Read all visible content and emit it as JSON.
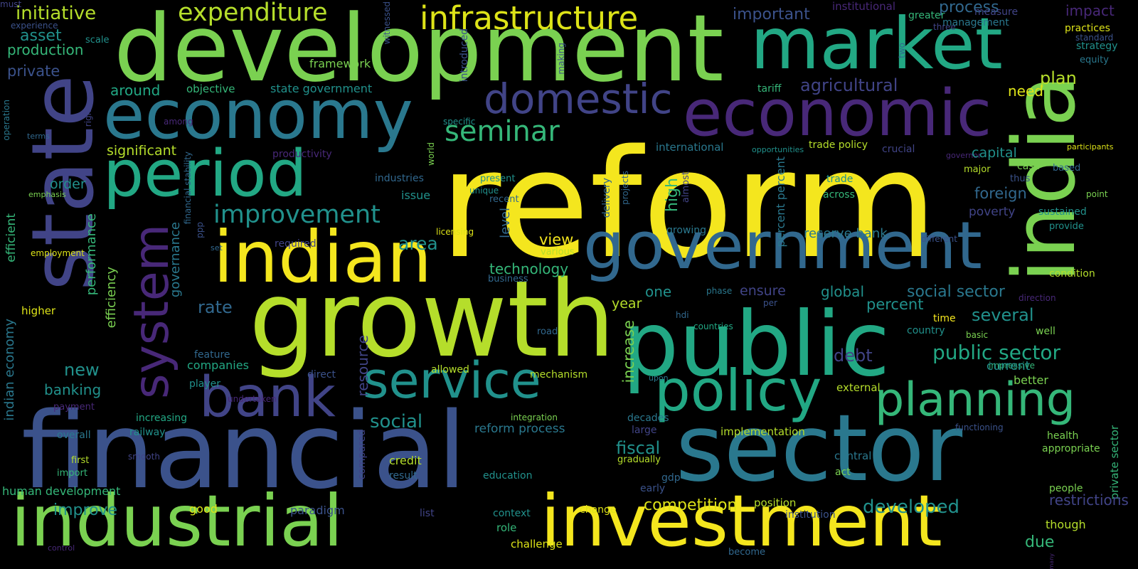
{
  "words": [
    {
      "text": "reform",
      "color": "#f4e61e",
      "rot": false
    },
    {
      "text": "development",
      "color": "#7ad151",
      "rot": false
    },
    {
      "text": "financial",
      "color": "#3b528b",
      "rot": false
    },
    {
      "text": "growth",
      "color": "#b5de2b",
      "rot": false
    },
    {
      "text": "public",
      "color": "#22a884",
      "rot": false
    },
    {
      "text": "sector",
      "color": "#2a788e",
      "rot": false
    },
    {
      "text": "state",
      "color": "#414487",
      "rot": true
    },
    {
      "text": "india",
      "color": "#7ad151",
      "rot": true
    },
    {
      "text": "industrial",
      "color": "#7ad151",
      "rot": false
    },
    {
      "text": "investment",
      "color": "#f4e61e",
      "rot": false
    },
    {
      "text": "market",
      "color": "#22a884",
      "rot": false
    },
    {
      "text": "economy",
      "color": "#2a788e",
      "rot": false
    },
    {
      "text": "economic",
      "color": "#482878",
      "rot": false
    },
    {
      "text": "government",
      "color": "#31688e",
      "rot": false
    },
    {
      "text": "indian",
      "color": "#f4e61e",
      "rot": false
    },
    {
      "text": "period",
      "color": "#22a884",
      "rot": false
    },
    {
      "text": "policy",
      "color": "#22a884",
      "rot": false
    },
    {
      "text": "planning",
      "color": "#35b779",
      "rot": false
    },
    {
      "text": "bank",
      "color": "#414487",
      "rot": false
    },
    {
      "text": "service",
      "color": "#21918c",
      "rot": false
    },
    {
      "text": "system",
      "color": "#482878",
      "rot": true
    },
    {
      "text": "infrastructure",
      "color": "#dde318",
      "rot": false
    },
    {
      "text": "domestic",
      "color": "#414487",
      "rot": false
    },
    {
      "text": "seminar",
      "color": "#35b779",
      "rot": false
    },
    {
      "text": "improvement",
      "color": "#21918c",
      "rot": false
    },
    {
      "text": "expenditure",
      "color": "#b5de2b",
      "rot": false
    },
    {
      "text": "initiative",
      "color": "#b5de2b",
      "rot": false
    },
    {
      "text": "asset",
      "color": "#21918c",
      "rot": false
    },
    {
      "text": "production",
      "color": "#35b779",
      "rot": false
    },
    {
      "text": "private",
      "color": "#3b528b",
      "rot": false
    },
    {
      "text": "experience",
      "color": "#3b528b",
      "rot": false
    },
    {
      "text": "scale",
      "color": "#21918c",
      "rot": false
    },
    {
      "text": "witnessed",
      "color": "#3b528b",
      "rot": true
    },
    {
      "text": "framework",
      "color": "#7ad151",
      "rot": false
    },
    {
      "text": "around",
      "color": "#22a884",
      "rot": false
    },
    {
      "text": "objective",
      "color": "#35b779",
      "rot": false
    },
    {
      "text": "state government",
      "color": "#21918c",
      "rot": false
    },
    {
      "text": "introduced",
      "color": "#3b528b",
      "rot": true
    },
    {
      "text": "making",
      "color": "#3b528b",
      "rot": true
    },
    {
      "text": "important",
      "color": "#3b528b",
      "rot": false
    },
    {
      "text": "institutional",
      "color": "#482878",
      "rot": false
    },
    {
      "text": "greater",
      "color": "#35b779",
      "rot": false
    },
    {
      "text": "three",
      "color": "#414487",
      "rot": false
    },
    {
      "text": "two",
      "color": "#31688e",
      "rot": true
    },
    {
      "text": "process",
      "color": "#31688e",
      "rot": false
    },
    {
      "text": "measure",
      "color": "#414487",
      "rot": false
    },
    {
      "text": "management",
      "color": "#2a788e",
      "rot": false
    },
    {
      "text": "impact",
      "color": "#482878",
      "rot": false
    },
    {
      "text": "practices",
      "color": "#dde318",
      "rot": false
    },
    {
      "text": "standard",
      "color": "#3b528b",
      "rot": false
    },
    {
      "text": "strategy",
      "color": "#21918c",
      "rot": false
    },
    {
      "text": "equity",
      "color": "#2a788e",
      "rot": false
    },
    {
      "text": "plan",
      "color": "#b5de2b",
      "rot": false
    },
    {
      "text": "agricultural",
      "color": "#414487",
      "rot": false
    },
    {
      "text": "need",
      "color": "#dde318",
      "rot": false
    },
    {
      "text": "tariff",
      "color": "#35b779",
      "rot": false
    },
    {
      "text": "significant",
      "color": "#b5de2b",
      "rot": false
    },
    {
      "text": "productivity",
      "color": "#482878",
      "rot": false
    },
    {
      "text": "world",
      "color": "#7ad151",
      "rot": true
    },
    {
      "text": "specific",
      "color": "#21918c",
      "rot": false
    },
    {
      "text": "among",
      "color": "#482878",
      "rot": false
    },
    {
      "text": "right",
      "color": "#414487",
      "rot": true
    },
    {
      "text": "operation",
      "color": "#2a788e",
      "rot": true
    },
    {
      "text": "terms",
      "color": "#31688e",
      "rot": false
    },
    {
      "text": "emphasis",
      "color": "#7ad151",
      "rot": false
    },
    {
      "text": "order",
      "color": "#21918c",
      "rot": false
    },
    {
      "text": "efficient",
      "color": "#35b779",
      "rot": true
    },
    {
      "text": "employment",
      "color": "#dde318",
      "rot": false
    },
    {
      "text": "higher",
      "color": "#dde318",
      "rot": false
    },
    {
      "text": "financial stability",
      "color": "#31688e",
      "rot": true
    },
    {
      "text": "ppp",
      "color": "#3b528b",
      "rot": true
    },
    {
      "text": "set",
      "color": "#31688e",
      "rot": false
    },
    {
      "text": "required",
      "color": "#414487",
      "rot": false
    },
    {
      "text": "governance",
      "color": "#2a788e",
      "rot": true
    },
    {
      "text": "performance",
      "color": "#35b779",
      "rot": true
    },
    {
      "text": "efficiency",
      "color": "#7ad151",
      "rot": true
    },
    {
      "text": "industries",
      "color": "#31688e",
      "rot": false
    },
    {
      "text": "issue",
      "color": "#21918c",
      "rot": false
    },
    {
      "text": "area",
      "color": "#21918c",
      "rot": false
    },
    {
      "text": "present",
      "color": "#21918c",
      "rot": false
    },
    {
      "text": "unique",
      "color": "#21918c",
      "rot": false
    },
    {
      "text": "recent",
      "color": "#31688e",
      "rot": false
    },
    {
      "text": "licensing",
      "color": "#dde318",
      "rot": false
    },
    {
      "text": "level",
      "color": "#31688e",
      "rot": true
    },
    {
      "text": "view",
      "color": "#f4e61e",
      "rot": false
    },
    {
      "text": "various",
      "color": "#b5de2b",
      "rot": false
    },
    {
      "text": "technology",
      "color": "#35b779",
      "rot": false
    },
    {
      "text": "business",
      "color": "#31688e",
      "rot": false
    },
    {
      "text": "delivery",
      "color": "#31688e",
      "rot": true
    },
    {
      "text": "projects",
      "color": "#31688e",
      "rot": true
    },
    {
      "text": "almost",
      "color": "#414487",
      "rot": true
    },
    {
      "text": "high",
      "color": "#35b779",
      "rot": true
    },
    {
      "text": "international",
      "color": "#2a788e",
      "rot": false
    },
    {
      "text": "opportunities",
      "color": "#21918c",
      "rot": false
    },
    {
      "text": "trade policy",
      "color": "#b5de2b",
      "rot": false
    },
    {
      "text": "crucial",
      "color": "#414487",
      "rot": false
    },
    {
      "text": "governor",
      "color": "#482878",
      "rot": false
    },
    {
      "text": "participants",
      "color": "#dde318",
      "rot": false
    },
    {
      "text": "capital",
      "color": "#21918c",
      "rot": false
    },
    {
      "text": "case",
      "color": "#7ad151",
      "rot": false
    },
    {
      "text": "based",
      "color": "#31688e",
      "rot": false
    },
    {
      "text": "major",
      "color": "#b5de2b",
      "rot": false
    },
    {
      "text": "thus",
      "color": "#3b528b",
      "rot": false
    },
    {
      "text": "trade",
      "color": "#21918c",
      "rot": false
    },
    {
      "text": "across",
      "color": "#35b779",
      "rot": false
    },
    {
      "text": "foreign",
      "color": "#31688e",
      "rot": false
    },
    {
      "text": "point",
      "color": "#7ad151",
      "rot": false
    },
    {
      "text": "poverty",
      "color": "#414487",
      "rot": false
    },
    {
      "text": "sustained",
      "color": "#21918c",
      "rot": false
    },
    {
      "text": "provide",
      "color": "#21918c",
      "rot": false
    },
    {
      "text": "percent percent",
      "color": "#2a788e",
      "rot": true
    },
    {
      "text": "growing",
      "color": "#2a788e",
      "rot": false
    },
    {
      "text": "reserve bank",
      "color": "#2a788e",
      "rot": false
    },
    {
      "text": "different",
      "color": "#3b528b",
      "rot": false
    },
    {
      "text": "one",
      "color": "#21918c",
      "rot": false
    },
    {
      "text": "phase",
      "color": "#2a788e",
      "rot": false
    },
    {
      "text": "ensure",
      "color": "#414487",
      "rot": false
    },
    {
      "text": "global",
      "color": "#21918c",
      "rot": false
    },
    {
      "text": "social sector",
      "color": "#2a788e",
      "rot": false
    },
    {
      "text": "condition",
      "color": "#b5de2b",
      "rot": false
    },
    {
      "text": "rate",
      "color": "#31688e",
      "rot": false
    },
    {
      "text": "year",
      "color": "#b5de2b",
      "rot": false
    },
    {
      "text": "percent",
      "color": "#21918c",
      "rot": false
    },
    {
      "text": "several",
      "color": "#21918c",
      "rot": false
    },
    {
      "text": "hdi",
      "color": "#31688e",
      "rot": false
    },
    {
      "text": "countries",
      "color": "#22a884",
      "rot": false
    },
    {
      "text": "per",
      "color": "#3b528b",
      "rot": false
    },
    {
      "text": "time",
      "color": "#f4e61e",
      "rot": false
    },
    {
      "text": "direction",
      "color": "#482878",
      "rot": false
    },
    {
      "text": "country",
      "color": "#21918c",
      "rot": false
    },
    {
      "text": "well",
      "color": "#7ad151",
      "rot": false
    },
    {
      "text": "basic",
      "color": "#7ad151",
      "rot": false
    },
    {
      "text": "road",
      "color": "#31688e",
      "rot": false
    },
    {
      "text": "increase",
      "color": "#7ad151",
      "rot": true
    },
    {
      "text": "public sector",
      "color": "#22a884",
      "rot": false
    },
    {
      "text": "debt",
      "color": "#414487",
      "rot": false
    },
    {
      "text": "impressive",
      "color": "#35b779",
      "rot": false
    },
    {
      "text": "current",
      "color": "#21918c",
      "rot": false
    },
    {
      "text": "better",
      "color": "#7ad151",
      "rot": false
    },
    {
      "text": "feature",
      "color": "#31688e",
      "rot": false
    },
    {
      "text": "indian economy",
      "color": "#2a788e",
      "rot": true
    },
    {
      "text": "new",
      "color": "#21918c",
      "rot": false
    },
    {
      "text": "companies",
      "color": "#22a884",
      "rot": false
    },
    {
      "text": "resource",
      "color": "#414487",
      "rot": true
    },
    {
      "text": "direct",
      "color": "#3b528b",
      "rot": false
    },
    {
      "text": "allowed",
      "color": "#b5de2b",
      "rot": false
    },
    {
      "text": "mechanism",
      "color": "#b5de2b",
      "rot": false
    },
    {
      "text": "upon",
      "color": "#2a788e",
      "rot": false
    },
    {
      "text": "external",
      "color": "#b5de2b",
      "rot": false
    },
    {
      "text": "player",
      "color": "#21918c",
      "rot": false
    },
    {
      "text": "banking",
      "color": "#21918c",
      "rot": false
    },
    {
      "text": "undertaken",
      "color": "#482878",
      "rot": false
    },
    {
      "text": "payment",
      "color": "#482878",
      "rot": false
    },
    {
      "text": "increasing",
      "color": "#22a884",
      "rot": false
    },
    {
      "text": "social",
      "color": "#21918c",
      "rot": false
    },
    {
      "text": "integration",
      "color": "#7ad151",
      "rot": false
    },
    {
      "text": "decades",
      "color": "#2a788e",
      "rot": false
    },
    {
      "text": "railway",
      "color": "#21918c",
      "rot": false
    },
    {
      "text": "overall",
      "color": "#2a788e",
      "rot": false
    },
    {
      "text": "reform process",
      "color": "#2a788e",
      "rot": false
    },
    {
      "text": "large",
      "color": "#414487",
      "rot": false
    },
    {
      "text": "implementation",
      "color": "#b5de2b",
      "rot": false
    },
    {
      "text": "functioning",
      "color": "#3b528b",
      "rot": false
    },
    {
      "text": "private sector",
      "color": "#35b779",
      "rot": true
    },
    {
      "text": "smooth",
      "color": "#414487",
      "rot": false
    },
    {
      "text": "compared",
      "color": "#414487",
      "rot": true
    },
    {
      "text": "fiscal",
      "color": "#21918c",
      "rot": false
    },
    {
      "text": "health",
      "color": "#7ad151",
      "rot": false
    },
    {
      "text": "appropriate",
      "color": "#7ad151",
      "rot": false
    },
    {
      "text": "first",
      "color": "#b5de2b",
      "rot": false
    },
    {
      "text": "credit",
      "color": "#b5de2b",
      "rot": false
    },
    {
      "text": "gradually",
      "color": "#b5de2b",
      "rot": false
    },
    {
      "text": "import",
      "color": "#35b779",
      "rot": false
    },
    {
      "text": "result",
      "color": "#31688e",
      "rot": false
    },
    {
      "text": "education",
      "color": "#21918c",
      "rot": false
    },
    {
      "text": "gdp",
      "color": "#31688e",
      "rot": false
    },
    {
      "text": "central",
      "color": "#2a788e",
      "rot": false
    },
    {
      "text": "act",
      "color": "#7ad151",
      "rot": false
    },
    {
      "text": "people",
      "color": "#7ad151",
      "rot": false
    },
    {
      "text": "human development",
      "color": "#35b779",
      "rot": false
    },
    {
      "text": "early",
      "color": "#3b528b",
      "rot": false
    },
    {
      "text": "position",
      "color": "#b5de2b",
      "rot": false
    },
    {
      "text": "restrictions",
      "color": "#414487",
      "rot": false
    },
    {
      "text": "improve",
      "color": "#21918c",
      "rot": false
    },
    {
      "text": "good",
      "color": "#dde318",
      "rot": false
    },
    {
      "text": "paradigm",
      "color": "#3b528b",
      "rot": false
    },
    {
      "text": "competition",
      "color": "#dde318",
      "rot": false
    },
    {
      "text": "change",
      "color": "#dde318",
      "rot": false
    },
    {
      "text": "developed",
      "color": "#21918c",
      "rot": false
    },
    {
      "text": "institution",
      "color": "#3b528b",
      "rot": false
    },
    {
      "text": "list",
      "color": "#414487",
      "rot": false
    },
    {
      "text": "context",
      "color": "#21918c",
      "rot": false
    },
    {
      "text": "though",
      "color": "#b5de2b",
      "rot": false
    },
    {
      "text": "role",
      "color": "#35b779",
      "rot": false
    },
    {
      "text": "due",
      "color": "#35b779",
      "rot": false
    },
    {
      "text": "challenge",
      "color": "#dde318",
      "rot": false
    },
    {
      "text": "become",
      "color": "#31688e",
      "rot": false
    },
    {
      "text": "control",
      "color": "#482878",
      "rot": false
    },
    {
      "text": "many",
      "color": "#482878",
      "rot": true
    },
    {
      "text": "must",
      "color": "#414487",
      "rot": false
    }
  ]
}
